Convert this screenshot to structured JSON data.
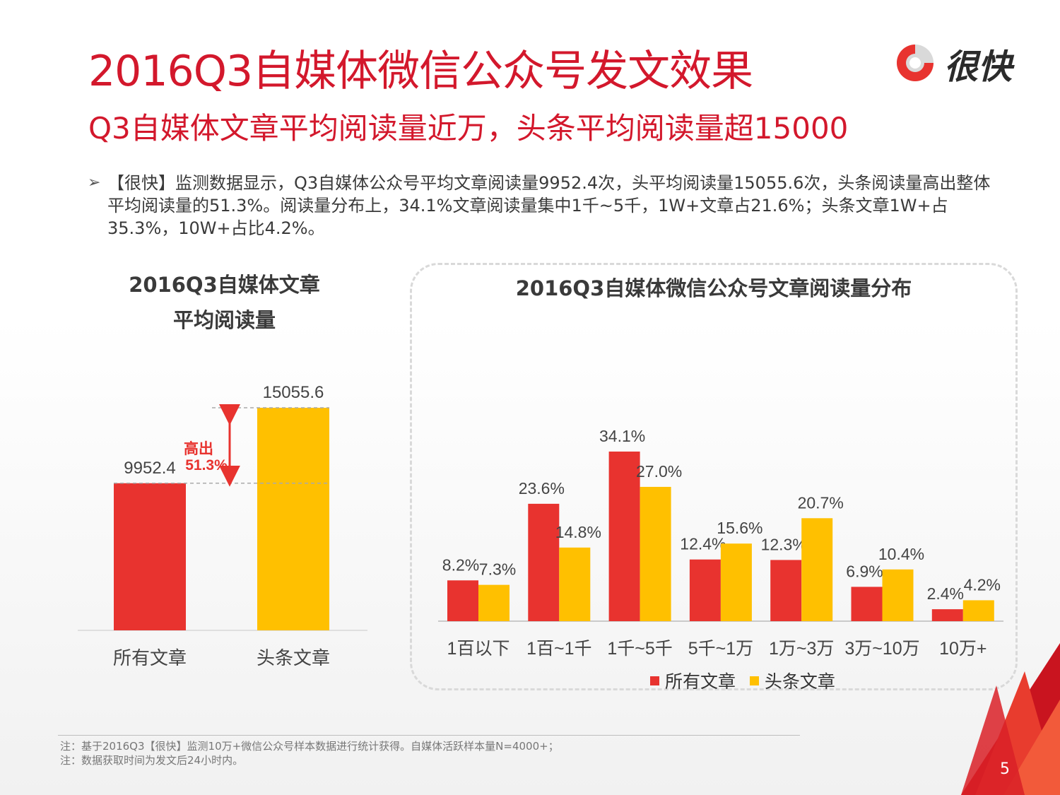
{
  "header": {
    "title": "2016Q3自媒体微信公众号发文效果",
    "subtitle": "Q3自媒体文章平均阅读量近万，头条平均阅读量超15000",
    "logo_text": "很快"
  },
  "bullet": {
    "arrow": "➢",
    "text": "【很快】监测数据显示，Q3自媒体公众号平均文章阅读量9952.4次，头平均阅读量15055.6次，头条阅读量高出整体平均阅读量的51.3%。阅读量分布上，34.1%文章阅读量集中1千~5千，1W+文章占21.6%；头条文章1W+占35.3%，10W+占比4.2%。"
  },
  "colors": {
    "red": "#e8332f",
    "yellow": "#ffc000",
    "title_red": "#d3182c"
  },
  "chart_data": [
    {
      "type": "bar",
      "title_lines": [
        "2016Q3自媒体文章",
        "平均阅读量"
      ],
      "categories": [
        "所有文章",
        "头条文章"
      ],
      "values": [
        9952.4,
        15055.6
      ],
      "value_labels": [
        "9952.4",
        "15055.6"
      ],
      "annotation": {
        "line1": "高出",
        "line2": "51.3%"
      }
    },
    {
      "type": "bar",
      "title": "2016Q3自媒体微信公众号文章阅读量分布",
      "categories": [
        "1百以下",
        "1百~1千",
        "1千~5千",
        "5千~1万",
        "1万~3万",
        "3万~10万",
        "10万+"
      ],
      "series": [
        {
          "name": "所有文章",
          "values": [
            8.2,
            23.6,
            34.1,
            12.4,
            12.3,
            6.9,
            2.4
          ],
          "labels": [
            "8.2%",
            "23.6%",
            "34.1%",
            "12.4%",
            "12.3%",
            "6.9%",
            "2.4%"
          ]
        },
        {
          "name": "头条文章",
          "values": [
            7.3,
            14.8,
            27.0,
            15.6,
            20.7,
            10.4,
            4.2
          ],
          "labels": [
            "7.3%",
            "14.8%",
            "27.0%",
            "15.6%",
            "20.7%",
            "10.4%",
            "4.2%"
          ]
        }
      ],
      "legend": "bottom"
    }
  ],
  "notes": [
    "注：基于2016Q3【很快】监测10万+微信公众号样本数据进行统计获得。自媒体活跃样本量N=4000+；",
    "注：数据获取时间为发文后24小时内。"
  ],
  "page_number": "5"
}
